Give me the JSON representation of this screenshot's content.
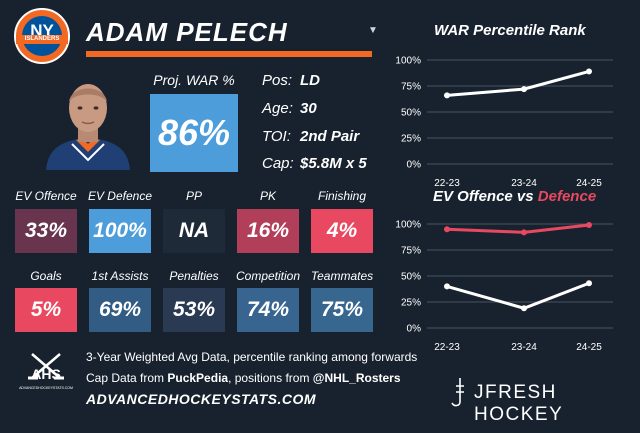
{
  "team_logo": {
    "text": "NY",
    "band": "ISLANDERS",
    "colors": {
      "orange": "#f26924",
      "blue": "#00539b"
    }
  },
  "player": {
    "name": "ADAM PELECH"
  },
  "dropdown_icon": "caret-down",
  "proj_war": {
    "label": "Proj. WAR %",
    "value": "86%",
    "color": "#4d9ddb"
  },
  "info": [
    {
      "label": "Pos:",
      "value": "LD"
    },
    {
      "label": "Age:",
      "value": "30"
    },
    {
      "label": "TOI:",
      "value": "2nd Pair"
    },
    {
      "label": "Cap:",
      "value": "$5.8M x 5"
    }
  ],
  "stats_row1": [
    {
      "label": "EV Offence",
      "value": "33%",
      "color": "#69344e"
    },
    {
      "label": "EV Defence",
      "value": "100%",
      "color": "#4d9ddb"
    },
    {
      "label": "PP",
      "value": "NA",
      "color": "#1e2a38"
    },
    {
      "label": "PK",
      "value": "16%",
      "color": "#b23f5a"
    },
    {
      "label": "Finishing",
      "value": "4%",
      "color": "#e94960"
    }
  ],
  "stats_row2": [
    {
      "label": "Goals",
      "value": "5%",
      "color": "#e94960"
    },
    {
      "label": "1st Assists",
      "value": "69%",
      "color": "#335c84"
    },
    {
      "label": "Penalties",
      "value": "53%",
      "color": "#2a3a52"
    },
    {
      "label": "Competition",
      "value": "74%",
      "color": "#37658f"
    },
    {
      "label": "Teammates",
      "value": "75%",
      "color": "#37668f"
    }
  ],
  "footer": {
    "logo_text": "AHS",
    "logo_sub": "ADVANCEDHOCKEYSTATS.COM",
    "line1": "3-Year Weighted Avg Data, percentile ranking among forwards",
    "line2_pre": "Cap Data from ",
    "line2_bold1": "PuckPedia",
    "line2_mid": ", positions from ",
    "line2_bold2": "@NHL_Rosters",
    "url": "ADVANCEDHOCKEYSTATS.COM",
    "brand": "JFRESH HOCKEY"
  },
  "chart_data": [
    {
      "type": "line",
      "title": "WAR Percentile Rank",
      "categories": [
        "22-23",
        "23-24",
        "24-25"
      ],
      "yticks": [
        "0%",
        "25%",
        "50%",
        "75%",
        "100%"
      ],
      "ylim": [
        0,
        100
      ],
      "grid": true,
      "series": [
        {
          "values": [
            66,
            72,
            89
          ],
          "color": "#ffffff"
        }
      ]
    },
    {
      "type": "line",
      "title_part1": "EV Offence",
      "title_part2": " vs ",
      "title_part3": "Defence",
      "title_colors": {
        "offence": "#ffffff",
        "defence": "#e94960"
      },
      "categories": [
        "22-23",
        "23-24",
        "24-25"
      ],
      "yticks": [
        "0%",
        "25%",
        "50%",
        "75%",
        "100%"
      ],
      "ylim": [
        0,
        100
      ],
      "grid": true,
      "series": [
        {
          "values": [
            40,
            19,
            43
          ],
          "color": "#ffffff"
        },
        {
          "values": [
            95,
            92,
            99
          ],
          "color": "#e94960"
        }
      ]
    }
  ]
}
